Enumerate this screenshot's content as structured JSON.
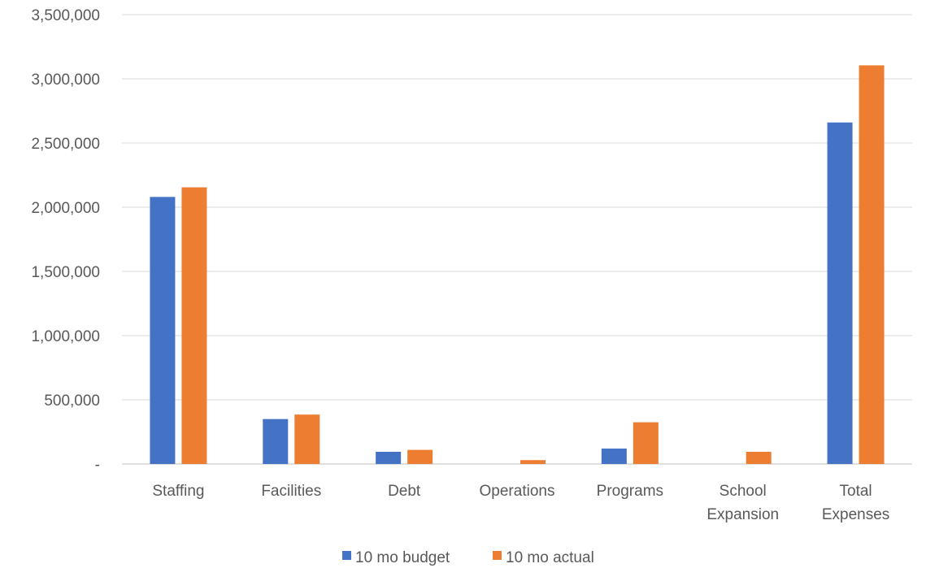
{
  "chart_data": {
    "type": "bar",
    "categories": [
      [
        "Staffing"
      ],
      [
        "Facilities"
      ],
      [
        "Debt"
      ],
      [
        "Operations"
      ],
      [
        "Programs"
      ],
      [
        "School",
        "Expansion"
      ],
      [
        "Total",
        "Expenses"
      ]
    ],
    "series": [
      {
        "name": "10 mo budget",
        "color": "#4472C4",
        "values": [
          2080000,
          350000,
          95000,
          0,
          120000,
          0,
          2660000
        ]
      },
      {
        "name": "10 mo actual",
        "color": "#ED7D31",
        "values": [
          2155000,
          385000,
          110000,
          30000,
          325000,
          95000,
          3105000
        ]
      }
    ],
    "ylim": [
      0,
      3500000
    ],
    "yticks": [
      {
        "value": 0,
        "label": "-"
      },
      {
        "value": 500000,
        "label": "500,000"
      },
      {
        "value": 1000000,
        "label": "1,000,000"
      },
      {
        "value": 1500000,
        "label": "1,500,000"
      },
      {
        "value": 2000000,
        "label": "2,000,000"
      },
      {
        "value": 2500000,
        "label": "2,500,000"
      },
      {
        "value": 3000000,
        "label": "3,000,000"
      },
      {
        "value": 3500000,
        "label": "3,500,000"
      }
    ],
    "grid": true,
    "legend_position": "bottom",
    "title": "",
    "xlabel": "",
    "ylabel": ""
  }
}
